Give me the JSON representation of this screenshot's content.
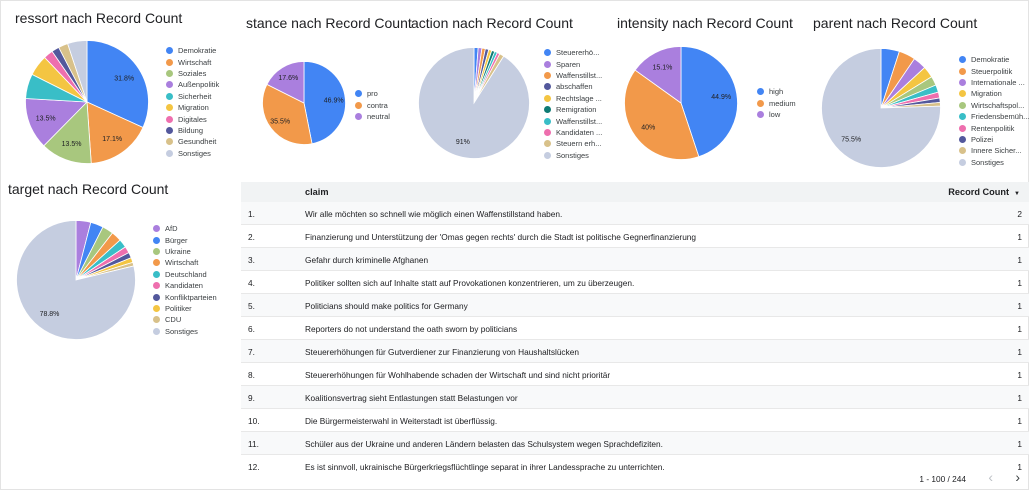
{
  "charts": [
    {
      "id": "ressort",
      "title": "ressort nach Record Count",
      "slices": [
        {
          "label": "Demokratie",
          "value": 31.8,
          "color": "#4285f4",
          "show": "31.8%"
        },
        {
          "label": "Wirtschaft",
          "value": 17.1,
          "color": "#f2994a",
          "show": "17.1%"
        },
        {
          "label": "Soziales",
          "value": 13.5,
          "color": "#a8c77e",
          "show": "13.5%"
        },
        {
          "label": "Außenpolitik",
          "value": 13.5,
          "color": "#aa7fde",
          "show": "13.5%"
        },
        {
          "label": "Sicherheit",
          "value": 6.5,
          "color": "#39bec7",
          "show": ""
        },
        {
          "label": "Migration",
          "value": 5.5,
          "color": "#f4c542",
          "show": ""
        },
        {
          "label": "Digitales",
          "value": 2.5,
          "color": "#ee6fae",
          "show": ""
        },
        {
          "label": "Bildung",
          "value": 2.0,
          "color": "#53589c",
          "show": ""
        },
        {
          "label": "Gesundheit",
          "value": 2.5,
          "color": "#d8c18a",
          "show": ""
        },
        {
          "label": "Sonstiges",
          "value": 5.1,
          "color": "#c5cde0",
          "show": ""
        }
      ]
    },
    {
      "id": "stance",
      "title": "stance nach Record Count",
      "slices": [
        {
          "label": "pro",
          "value": 46.9,
          "color": "#4285f4",
          "show": "46.9%"
        },
        {
          "label": "contra",
          "value": 35.5,
          "color": "#f2994a",
          "show": "35.5%"
        },
        {
          "label": "neutral",
          "value": 17.6,
          "color": "#aa7fde",
          "show": "17.6%"
        }
      ]
    },
    {
      "id": "action",
      "title": "action nach Record Count",
      "slices": [
        {
          "label": "Steuererhö...",
          "value": 1.2,
          "color": "#4285f4",
          "show": ""
        },
        {
          "label": "Sparen",
          "value": 1.1,
          "color": "#aa7fde",
          "show": ""
        },
        {
          "label": "Waffenstillst...",
          "value": 1.0,
          "color": "#f2994a",
          "show": ""
        },
        {
          "label": "abschaffen",
          "value": 1.0,
          "color": "#53589c",
          "show": ""
        },
        {
          "label": "Rechtslage ...",
          "value": 0.9,
          "color": "#f4c542",
          "show": ""
        },
        {
          "label": "Remigration",
          "value": 0.9,
          "color": "#0f7b74",
          "show": ""
        },
        {
          "label": "Waffenstillst...",
          "value": 0.8,
          "color": "#39bec7",
          "show": ""
        },
        {
          "label": "Kandidaten ...",
          "value": 0.8,
          "color": "#ee6fae",
          "show": ""
        },
        {
          "label": "Steuern erh...",
          "value": 1.3,
          "color": "#d8c18a",
          "show": ""
        },
        {
          "label": "Sonstiges",
          "value": 91,
          "color": "#c5cde0",
          "show": "91%"
        }
      ]
    },
    {
      "id": "intensity",
      "title": "intensity nach Record Count",
      "slices": [
        {
          "label": "high",
          "value": 44.9,
          "color": "#4285f4",
          "show": "44.9%"
        },
        {
          "label": "medium",
          "value": 40,
          "color": "#f2994a",
          "show": "40%"
        },
        {
          "label": "low",
          "value": 15.1,
          "color": "#aa7fde",
          "show": "15.1%"
        }
      ]
    },
    {
      "id": "parent",
      "title": "parent nach Record Count",
      "slices": [
        {
          "label": "Demokratie",
          "value": 5.0,
          "color": "#4285f4",
          "show": ""
        },
        {
          "label": "Steuerpolitik",
          "value": 4.5,
          "color": "#f2994a",
          "show": ""
        },
        {
          "label": "Internationale ...",
          "value": 3.6,
          "color": "#aa7fde",
          "show": ""
        },
        {
          "label": "Migration",
          "value": 3.1,
          "color": "#f4c542",
          "show": ""
        },
        {
          "label": "Wirtschaftspol...",
          "value": 2.5,
          "color": "#a8c77e",
          "show": ""
        },
        {
          "label": "Friedensbemüh...",
          "value": 2.0,
          "color": "#39bec7",
          "show": ""
        },
        {
          "label": "Rentenpolitik",
          "value": 1.6,
          "color": "#ee6fae",
          "show": ""
        },
        {
          "label": "Polizei",
          "value": 1.2,
          "color": "#53589c",
          "show": ""
        },
        {
          "label": "Innere Sicher...",
          "value": 1.0,
          "color": "#d8c18a",
          "show": ""
        },
        {
          "label": "Sonstiges",
          "value": 75.5,
          "color": "#c5cde0",
          "show": "75.5%"
        }
      ]
    },
    {
      "id": "target",
      "title": "target nach Record Count",
      "slices": [
        {
          "label": "AfD",
          "value": 4.0,
          "color": "#aa7fde",
          "show": ""
        },
        {
          "label": "Bürger",
          "value": 3.5,
          "color": "#4285f4",
          "show": ""
        },
        {
          "label": "Ukraine",
          "value": 3.0,
          "color": "#a8c77e",
          "show": ""
        },
        {
          "label": "Wirtschaft",
          "value": 2.8,
          "color": "#f2994a",
          "show": ""
        },
        {
          "label": "Deutschland",
          "value": 2.3,
          "color": "#39bec7",
          "show": ""
        },
        {
          "label": "Kandidaten",
          "value": 1.8,
          "color": "#ee6fae",
          "show": ""
        },
        {
          "label": "Konfliktparteien",
          "value": 1.5,
          "color": "#53589c",
          "show": ""
        },
        {
          "label": "Politiker",
          "value": 1.3,
          "color": "#f4c542",
          "show": ""
        },
        {
          "label": "CDU",
          "value": 1.0,
          "color": "#d8c18a",
          "show": ""
        },
        {
          "label": "Sonstiges",
          "value": 78.8,
          "color": "#c5cde0",
          "show": "78.8%"
        }
      ]
    }
  ],
  "table": {
    "header_claim": "claim",
    "header_count": "Record Count",
    "sort_icon": "▼",
    "rows": [
      {
        "idx": "1.",
        "claim": "Wir alle möchten so schnell wie möglich einen Waffenstillstand haben.",
        "count": "2"
      },
      {
        "idx": "2.",
        "claim": "Finanzierung und Unterstützung der 'Omas gegen rechts' durch die Stadt ist politische Gegnerfinanzierung",
        "count": "1"
      },
      {
        "idx": "3.",
        "claim": "Gefahr durch kriminelle Afghanen",
        "count": "1"
      },
      {
        "idx": "4.",
        "claim": "Politiker sollten sich auf Inhalte statt auf Provokationen konzentrieren, um zu überzeugen.",
        "count": "1"
      },
      {
        "idx": "5.",
        "claim": "Politicians should make politics for Germany",
        "count": "1"
      },
      {
        "idx": "6.",
        "claim": "Reporters do not understand the oath sworn by politicians",
        "count": "1"
      },
      {
        "idx": "7.",
        "claim": "Steuererhöhungen für Gutverdiener zur Finanzierung von Haushaltslücken",
        "count": "1"
      },
      {
        "idx": "8.",
        "claim": "Steuererhöhungen für Wohlhabende schaden der Wirtschaft und sind nicht prioritär",
        "count": "1"
      },
      {
        "idx": "9.",
        "claim": "Koalitionsvertrag sieht Entlastungen statt Belastungen vor",
        "count": "1"
      },
      {
        "idx": "10.",
        "claim": "Die Bürgermeisterwahl in Weiterstadt ist überflüssig.",
        "count": "1"
      },
      {
        "idx": "11.",
        "claim": "Schüler aus der Ukraine und anderen Ländern belasten das Schulsystem wegen Sprachdefiziten.",
        "count": "1"
      },
      {
        "idx": "12.",
        "claim": "Es ist sinnvoll, ukrainische Bürgerkriegsflüchtlinge separat in ihrer Landessprache zu unterrichten.",
        "count": "1"
      }
    ]
  },
  "pagination": {
    "text": "1 - 100 / 244",
    "prev_icon": "‹",
    "next_icon": "›"
  }
}
